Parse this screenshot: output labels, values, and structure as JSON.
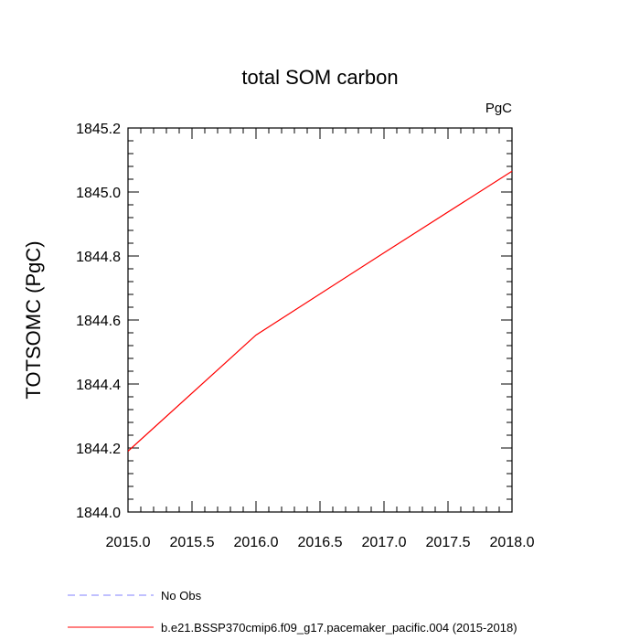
{
  "chart_data": {
    "type": "line",
    "title": "total SOM carbon",
    "units": "PgC",
    "xlabel": "",
    "ylabel": "TOTSOMC  (PgC)",
    "xlim": [
      2015.0,
      2018.0
    ],
    "ylim": [
      1844.0,
      1845.2
    ],
    "x_ticks": [
      "2015.0",
      "2015.5",
      "2016.0",
      "2016.5",
      "2017.0",
      "2017.5",
      "2018.0"
    ],
    "y_ticks": [
      "1844.0",
      "1844.2",
      "1844.4",
      "1844.6",
      "1844.8",
      "1845.0",
      "1845.2"
    ],
    "grid": false,
    "series": [
      {
        "name": "b.e21.BSSP370cmip6.f09_g17.pacemaker_pacific.004 (2015-2018)",
        "color": "#ff0000",
        "dash": "solid",
        "x": [
          2015.0,
          2016.0,
          2017.0,
          2018.0
        ],
        "values": [
          1844.19,
          1844.553,
          1844.81,
          1845.065
        ]
      }
    ],
    "legend": {
      "placement": "bottom",
      "entries": [
        {
          "label": "No Obs",
          "color": "#8080ff",
          "dash": "dashed"
        },
        {
          "label": "b.e21.BSSP370cmip6.f09_g17.pacemaker_pacific.004 (2015-2018)",
          "color": "#ff0000",
          "dash": "solid"
        }
      ]
    }
  }
}
